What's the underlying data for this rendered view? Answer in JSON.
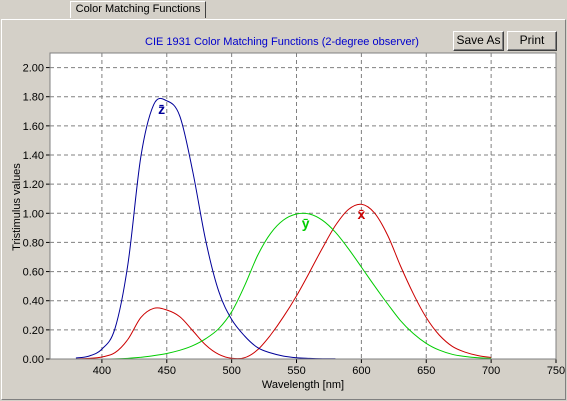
{
  "tab": {
    "label": "Color Matching Functions"
  },
  "toolbar": {
    "save_label": "Save As",
    "print_label": "Print"
  },
  "colors": {
    "x_bar": "#cc0000",
    "y_bar": "#00cc00",
    "z_bar": "#000099",
    "title": "#0000cc",
    "plot_bg": "#ffffff",
    "grid": "#808080"
  },
  "chart_data": {
    "type": "line",
    "title": "CIE 1931 Color Matching Functions (2-degree observer)",
    "xlabel": "Wavelength [nm]",
    "ylabel": "Tristimulus values",
    "xlim": [
      360,
      750
    ],
    "ylim": [
      0,
      2.1
    ],
    "grid": true,
    "xticks": [
      "400",
      "450",
      "500",
      "550",
      "600",
      "650",
      "700",
      "750"
    ],
    "yticks": [
      "0.00",
      "0.20",
      "0.40",
      "0.60",
      "0.80",
      "1.00",
      "1.20",
      "1.40",
      "1.60",
      "1.80",
      "2.00"
    ],
    "series": [
      {
        "name": "x̄",
        "color": "#cc0000",
        "x": [
          380,
          390,
          400,
          410,
          420,
          430,
          440,
          450,
          460,
          470,
          480,
          490,
          500,
          510,
          520,
          530,
          540,
          550,
          560,
          570,
          580,
          590,
          600,
          610,
          620,
          630,
          640,
          650,
          660,
          670,
          680,
          690,
          700
        ],
        "y": [
          0.001,
          0.004,
          0.014,
          0.043,
          0.134,
          0.284,
          0.348,
          0.336,
          0.291,
          0.195,
          0.096,
          0.032,
          0.005,
          0.009,
          0.063,
          0.165,
          0.29,
          0.433,
          0.595,
          0.762,
          0.916,
          1.026,
          1.062,
          1.003,
          0.854,
          0.642,
          0.448,
          0.284,
          0.165,
          0.087,
          0.047,
          0.023,
          0.011
        ]
      },
      {
        "name": "ȳ",
        "color": "#00cc00",
        "x": [
          380,
          390,
          400,
          410,
          420,
          430,
          440,
          450,
          460,
          470,
          480,
          490,
          500,
          510,
          520,
          530,
          540,
          550,
          560,
          570,
          580,
          590,
          600,
          610,
          620,
          630,
          640,
          650,
          660,
          670,
          680,
          690,
          700
        ],
        "y": [
          0.0,
          0.0,
          0.0,
          0.001,
          0.004,
          0.012,
          0.023,
          0.038,
          0.06,
          0.091,
          0.139,
          0.208,
          0.323,
          0.503,
          0.71,
          0.862,
          0.954,
          0.995,
          0.995,
          0.952,
          0.87,
          0.757,
          0.631,
          0.503,
          0.381,
          0.265,
          0.175,
          0.107,
          0.061,
          0.032,
          0.017,
          0.008,
          0.004
        ]
      },
      {
        "name": "z̄",
        "color": "#000099",
        "x": [
          380,
          390,
          400,
          410,
          420,
          430,
          440,
          450,
          460,
          470,
          480,
          490,
          500,
          510,
          520,
          530,
          540,
          550,
          560,
          570,
          580
        ],
        "y": [
          0.007,
          0.02,
          0.068,
          0.207,
          0.646,
          1.386,
          1.747,
          1.772,
          1.669,
          1.288,
          0.813,
          0.465,
          0.272,
          0.158,
          0.078,
          0.042,
          0.02,
          0.009,
          0.004,
          0.002,
          0.002
        ]
      }
    ],
    "annotations": [
      {
        "text": "z̄",
        "series": "z̄",
        "color": "#000099",
        "x": 446,
        "y": 1.68
      },
      {
        "text": "ȳ",
        "series": "ȳ",
        "color": "#00cc00",
        "x": 557,
        "y": 0.9
      },
      {
        "text": "x̄",
        "series": "x̄",
        "color": "#cc0000",
        "x": 600,
        "y": 0.96
      }
    ]
  }
}
